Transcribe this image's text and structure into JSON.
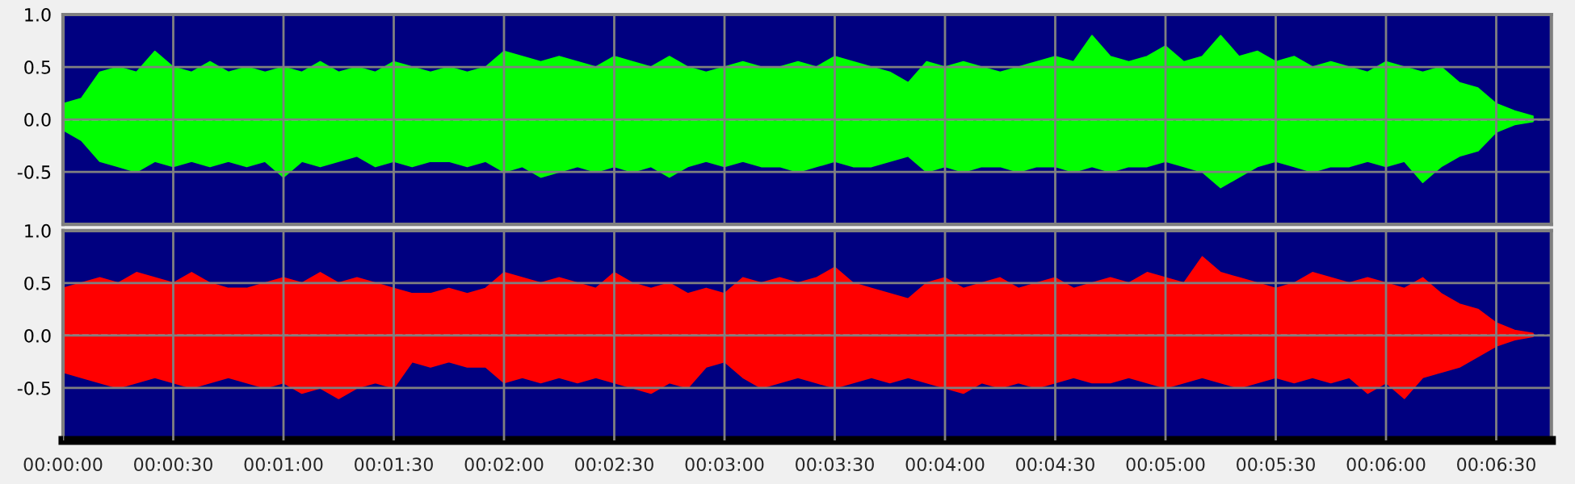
{
  "chart_data": [
    {
      "type": "area",
      "tick_labels": "y",
      "grid": true,
      "xlim": [
        0,
        405
      ],
      "ylim": [
        -1.0,
        1.0
      ],
      "yticks": [
        {
          "value": 1.0,
          "label": "1.0"
        },
        {
          "value": 0.5,
          "label": "0.5"
        },
        {
          "value": 0.0,
          "label": "0.0"
        },
        {
          "value": -0.5,
          "label": "-0.5"
        }
      ],
      "xticks": [
        {
          "value": 0,
          "label": null
        },
        {
          "value": 30,
          "label": null
        },
        {
          "value": 60,
          "label": null
        },
        {
          "value": 90,
          "label": null
        },
        {
          "value": 120,
          "label": null
        },
        {
          "value": 150,
          "label": null
        },
        {
          "value": 180,
          "label": null
        },
        {
          "value": 210,
          "label": null
        },
        {
          "value": 240,
          "label": null
        },
        {
          "value": 270,
          "label": null
        },
        {
          "value": 300,
          "label": null
        },
        {
          "value": 330,
          "label": null
        },
        {
          "value": 360,
          "label": null
        },
        {
          "value": 390,
          "label": null
        }
      ],
      "ref_lines": [
        {
          "axis": "y",
          "value": 0.0,
          "color": "#ffffff",
          "line_style": "dashed"
        }
      ],
      "x": [
        0,
        5,
        10,
        15,
        20,
        25,
        30,
        35,
        40,
        45,
        50,
        55,
        60,
        65,
        70,
        75,
        80,
        85,
        90,
        95,
        100,
        105,
        110,
        115,
        120,
        125,
        130,
        135,
        140,
        145,
        150,
        155,
        160,
        165,
        170,
        175,
        180,
        185,
        190,
        195,
        200,
        205,
        210,
        215,
        220,
        225,
        230,
        235,
        240,
        245,
        250,
        255,
        260,
        265,
        270,
        275,
        280,
        285,
        290,
        295,
        300,
        305,
        310,
        315,
        320,
        325,
        330,
        335,
        340,
        345,
        350,
        355,
        360,
        365,
        370,
        375,
        380,
        385,
        390,
        395,
        400
      ],
      "series": [
        {
          "color": "#00ff00",
          "values": [
            0.15,
            0.2,
            0.45,
            0.5,
            0.45,
            0.65,
            0.5,
            0.45,
            0.55,
            0.45,
            0.5,
            0.45,
            0.5,
            0.45,
            0.55,
            0.45,
            0.5,
            0.45,
            0.55,
            0.5,
            0.45,
            0.5,
            0.45,
            0.5,
            0.65,
            0.6,
            0.55,
            0.6,
            0.55,
            0.5,
            0.6,
            0.55,
            0.5,
            0.6,
            0.5,
            0.45,
            0.5,
            0.55,
            0.5,
            0.5,
            0.55,
            0.5,
            0.6,
            0.55,
            0.5,
            0.45,
            0.35,
            0.55,
            0.5,
            0.55,
            0.5,
            0.45,
            0.5,
            0.55,
            0.6,
            0.55,
            0.8,
            0.6,
            0.55,
            0.6,
            0.7,
            0.55,
            0.6,
            0.8,
            0.6,
            0.65,
            0.55,
            0.6,
            0.5,
            0.55,
            0.5,
            0.45,
            0.55,
            0.5,
            0.45,
            0.5,
            0.35,
            0.3,
            0.15,
            0.08,
            0.03
          ]
        },
        {
          "color": "#00ff00",
          "values": [
            -0.1,
            -0.2,
            -0.4,
            -0.45,
            -0.5,
            -0.4,
            -0.45,
            -0.4,
            -0.45,
            -0.4,
            -0.45,
            -0.4,
            -0.55,
            -0.4,
            -0.45,
            -0.4,
            -0.35,
            -0.45,
            -0.4,
            -0.45,
            -0.4,
            -0.4,
            -0.45,
            -0.4,
            -0.5,
            -0.45,
            -0.55,
            -0.5,
            -0.45,
            -0.5,
            -0.45,
            -0.5,
            -0.45,
            -0.55,
            -0.45,
            -0.4,
            -0.45,
            -0.4,
            -0.45,
            -0.45,
            -0.5,
            -0.45,
            -0.4,
            -0.45,
            -0.45,
            -0.4,
            -0.35,
            -0.5,
            -0.45,
            -0.5,
            -0.45,
            -0.45,
            -0.5,
            -0.45,
            -0.45,
            -0.5,
            -0.45,
            -0.5,
            -0.45,
            -0.45,
            -0.4,
            -0.45,
            -0.5,
            -0.65,
            -0.55,
            -0.45,
            -0.4,
            -0.45,
            -0.5,
            -0.45,
            -0.45,
            -0.4,
            -0.45,
            -0.4,
            -0.6,
            -0.45,
            -0.35,
            -0.3,
            -0.12,
            -0.05,
            -0.02
          ]
        }
      ]
    },
    {
      "type": "area",
      "grid": true,
      "xlim": [
        0,
        405
      ],
      "ylim": [
        -1.0,
        1.0
      ],
      "yticks": [
        {
          "value": 1.0,
          "label": "1.0"
        },
        {
          "value": 0.5,
          "label": "0.5"
        },
        {
          "value": 0.0,
          "label": "0.0"
        },
        {
          "value": -0.5,
          "label": "-0.5"
        }
      ],
      "xticks": [
        {
          "value": 0,
          "label": "00:00:00"
        },
        {
          "value": 30,
          "label": "00:00:30"
        },
        {
          "value": 60,
          "label": "00:01:00"
        },
        {
          "value": 90,
          "label": "00:01:30"
        },
        {
          "value": 120,
          "label": "00:02:00"
        },
        {
          "value": 150,
          "label": "00:02:30"
        },
        {
          "value": 180,
          "label": "00:03:00"
        },
        {
          "value": 210,
          "label": "00:03:30"
        },
        {
          "value": 240,
          "label": "00:04:00"
        },
        {
          "value": 270,
          "label": "00:04:30"
        },
        {
          "value": 300,
          "label": "00:05:00"
        },
        {
          "value": 330,
          "label": "00:05:30"
        },
        {
          "value": 360,
          "label": "00:06:00"
        },
        {
          "value": 390,
          "label": "00:06:30"
        }
      ],
      "ref_lines": [
        {
          "axis": "y",
          "value": 0.0,
          "color": "#ffffff",
          "line_style": "dashed"
        }
      ],
      "x": [
        0,
        5,
        10,
        15,
        20,
        25,
        30,
        35,
        40,
        45,
        50,
        55,
        60,
        65,
        70,
        75,
        80,
        85,
        90,
        95,
        100,
        105,
        110,
        115,
        120,
        125,
        130,
        135,
        140,
        145,
        150,
        155,
        160,
        165,
        170,
        175,
        180,
        185,
        190,
        195,
        200,
        205,
        210,
        215,
        220,
        225,
        230,
        235,
        240,
        245,
        250,
        255,
        260,
        265,
        270,
        275,
        280,
        285,
        290,
        295,
        300,
        305,
        310,
        315,
        320,
        325,
        330,
        335,
        340,
        345,
        350,
        355,
        360,
        365,
        370,
        375,
        380,
        385,
        390,
        395,
        400
      ],
      "series": [
        {
          "color": "#ff0000",
          "values": [
            0.45,
            0.5,
            0.55,
            0.5,
            0.6,
            0.55,
            0.5,
            0.6,
            0.5,
            0.45,
            0.45,
            0.5,
            0.55,
            0.5,
            0.6,
            0.5,
            0.55,
            0.5,
            0.45,
            0.4,
            0.4,
            0.45,
            0.4,
            0.45,
            0.6,
            0.55,
            0.5,
            0.55,
            0.5,
            0.45,
            0.6,
            0.5,
            0.45,
            0.5,
            0.4,
            0.45,
            0.4,
            0.55,
            0.5,
            0.55,
            0.5,
            0.55,
            0.65,
            0.5,
            0.45,
            0.4,
            0.35,
            0.5,
            0.55,
            0.45,
            0.5,
            0.55,
            0.45,
            0.5,
            0.55,
            0.45,
            0.5,
            0.55,
            0.5,
            0.6,
            0.55,
            0.5,
            0.75,
            0.6,
            0.55,
            0.5,
            0.45,
            0.5,
            0.6,
            0.55,
            0.5,
            0.55,
            0.5,
            0.45,
            0.55,
            0.4,
            0.3,
            0.25,
            0.12,
            0.05,
            0.02
          ]
        },
        {
          "color": "#ff0000",
          "values": [
            -0.35,
            -0.4,
            -0.45,
            -0.5,
            -0.45,
            -0.4,
            -0.45,
            -0.5,
            -0.45,
            -0.4,
            -0.45,
            -0.5,
            -0.45,
            -0.55,
            -0.5,
            -0.6,
            -0.5,
            -0.45,
            -0.5,
            -0.25,
            -0.3,
            -0.25,
            -0.3,
            -0.3,
            -0.45,
            -0.4,
            -0.45,
            -0.4,
            -0.45,
            -0.4,
            -0.45,
            -0.5,
            -0.55,
            -0.45,
            -0.5,
            -0.3,
            -0.25,
            -0.4,
            -0.5,
            -0.45,
            -0.4,
            -0.45,
            -0.5,
            -0.45,
            -0.4,
            -0.45,
            -0.4,
            -0.45,
            -0.5,
            -0.55,
            -0.45,
            -0.5,
            -0.45,
            -0.5,
            -0.45,
            -0.4,
            -0.45,
            -0.45,
            -0.4,
            -0.45,
            -0.5,
            -0.45,
            -0.4,
            -0.45,
            -0.5,
            -0.45,
            -0.4,
            -0.45,
            -0.4,
            -0.45,
            -0.4,
            -0.55,
            -0.45,
            -0.6,
            -0.4,
            -0.35,
            -0.3,
            -0.2,
            -0.1,
            -0.04,
            -0.01
          ]
        }
      ]
    }
  ]
}
